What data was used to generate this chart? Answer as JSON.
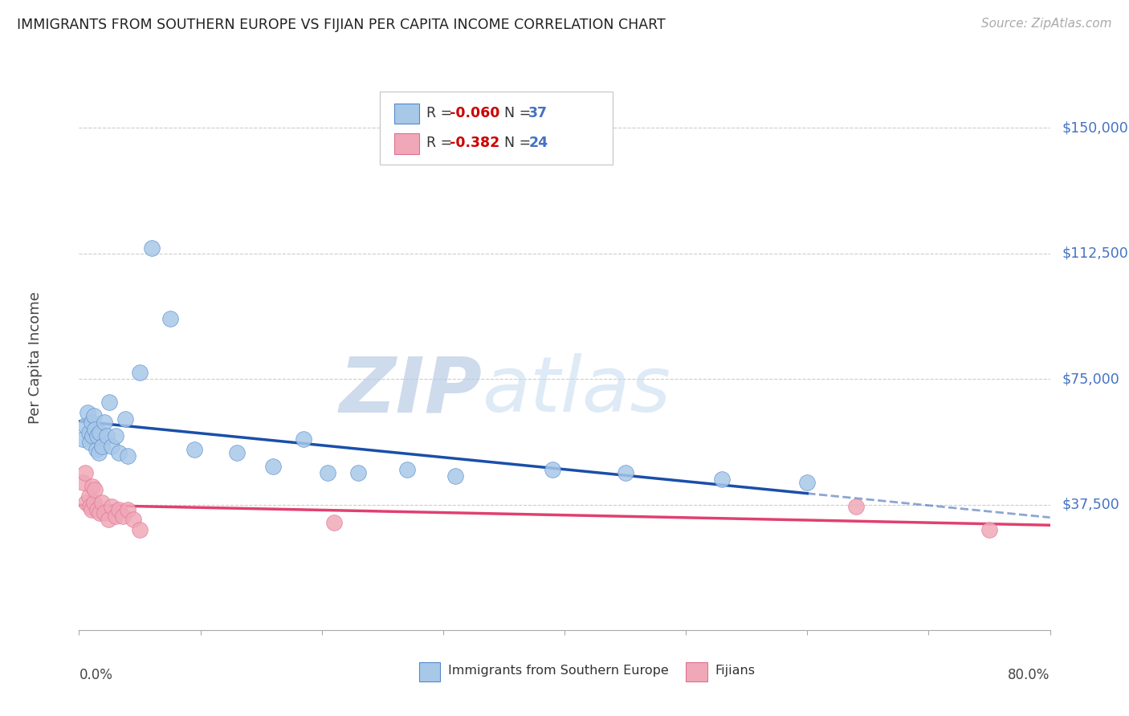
{
  "title": "IMMIGRANTS FROM SOUTHERN EUROPE VS FIJIAN PER CAPITA INCOME CORRELATION CHART",
  "source": "Source: ZipAtlas.com",
  "ylabel": "Per Capita Income",
  "yticks": [
    0,
    37500,
    75000,
    112500,
    150000
  ],
  "ytick_labels": [
    "",
    "$37,500",
    "$75,000",
    "$112,500",
    "$150,000"
  ],
  "xlim": [
    0.0,
    0.8
  ],
  "ylim": [
    0,
    162500
  ],
  "legend_r1": "-0.060",
  "legend_n1": "37",
  "legend_r2": "-0.382",
  "legend_n2": "24",
  "blue_fill": "#a8c8e8",
  "pink_fill": "#f0a8b8",
  "blue_edge": "#5588cc",
  "pink_edge": "#dd7090",
  "blue_line": "#1a4fa8",
  "pink_line": "#e04070",
  "watermark_color": "#c8d8f0",
  "grid_color": "#cccccc",
  "right_label_color": "#4472c4",
  "blue_x": [
    0.003,
    0.005,
    0.007,
    0.008,
    0.009,
    0.01,
    0.011,
    0.012,
    0.013,
    0.014,
    0.015,
    0.016,
    0.017,
    0.019,
    0.021,
    0.023,
    0.025,
    0.027,
    0.03,
    0.033,
    0.038,
    0.04,
    0.05,
    0.06,
    0.075,
    0.095,
    0.13,
    0.16,
    0.185,
    0.205,
    0.23,
    0.27,
    0.31,
    0.39,
    0.45,
    0.53,
    0.6
  ],
  "blue_y": [
    57000,
    61000,
    65000,
    59000,
    56000,
    62000,
    58000,
    64000,
    60000,
    54000,
    58000,
    53000,
    59000,
    55000,
    62000,
    58000,
    68000,
    55000,
    58000,
    53000,
    63000,
    52000,
    77000,
    114000,
    93000,
    54000,
    53000,
    49000,
    57000,
    47000,
    47000,
    48000,
    46000,
    48000,
    47000,
    45000,
    44000
  ],
  "pink_x": [
    0.003,
    0.005,
    0.006,
    0.008,
    0.009,
    0.01,
    0.011,
    0.012,
    0.013,
    0.015,
    0.017,
    0.019,
    0.021,
    0.024,
    0.027,
    0.03,
    0.033,
    0.036,
    0.04,
    0.045,
    0.05,
    0.21,
    0.64,
    0.75
  ],
  "pink_y": [
    44000,
    47000,
    38000,
    40000,
    37000,
    36000,
    43000,
    38000,
    42000,
    36000,
    35000,
    38000,
    35000,
    33000,
    37000,
    34000,
    36000,
    34000,
    36000,
    33000,
    30000,
    32000,
    37000,
    30000
  ]
}
